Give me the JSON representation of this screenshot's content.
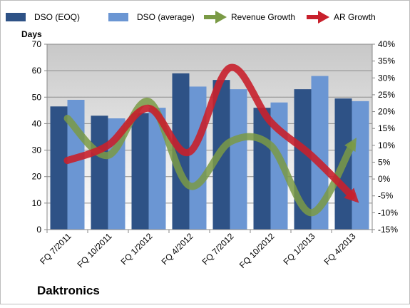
{
  "company": "Daktronics",
  "colors": {
    "dso_eoq": "#2E5286",
    "dso_avg": "#6B96D3",
    "revenue_growth": "#7A9A45",
    "ar_growth": "#C8202C",
    "plot_bg_top": "#C8C8C8",
    "plot_bg_bottom": "#FFFFFF"
  },
  "chart_data": {
    "type": "bar",
    "title": "",
    "categories": [
      "FQ 7/2011",
      "FQ 10/2011",
      "FQ 1/2012",
      "FQ 4/2012",
      "FQ 7/2012",
      "FQ 10/2012",
      "FQ 1/2013",
      "FQ 4/2013"
    ],
    "series": [
      {
        "name": "DSO (EOQ)",
        "type": "bar",
        "axis": "left",
        "values": [
          46.5,
          43,
          44,
          59,
          56.5,
          46,
          53,
          49.5
        ]
      },
      {
        "name": "DSO (average)",
        "type": "bar",
        "axis": "left",
        "values": [
          49,
          42,
          46,
          54,
          53,
          48,
          58,
          48.5
        ]
      },
      {
        "name": "Revenue Growth",
        "type": "line",
        "axis": "right",
        "values": [
          18,
          7,
          23,
          -2,
          11,
          10,
          -10,
          10
        ]
      },
      {
        "name": "AR Growth",
        "type": "line",
        "axis": "right",
        "values": [
          5.5,
          10,
          21,
          8,
          33,
          17,
          7,
          -5
        ]
      }
    ],
    "ylabel": "Days",
    "xlabel": "",
    "ylim": [
      0,
      70
    ],
    "y_ticks": [
      "0",
      "10",
      "20",
      "30",
      "40",
      "50",
      "60",
      "70"
    ],
    "y2lim": [
      -15,
      40
    ],
    "y2_ticks": [
      "-15%",
      "-10%",
      "-5%",
      "0%",
      "5%",
      "10%",
      "15%",
      "20%",
      "25%",
      "30%",
      "35%",
      "40%"
    ],
    "legend_position": "top",
    "grid": true
  }
}
